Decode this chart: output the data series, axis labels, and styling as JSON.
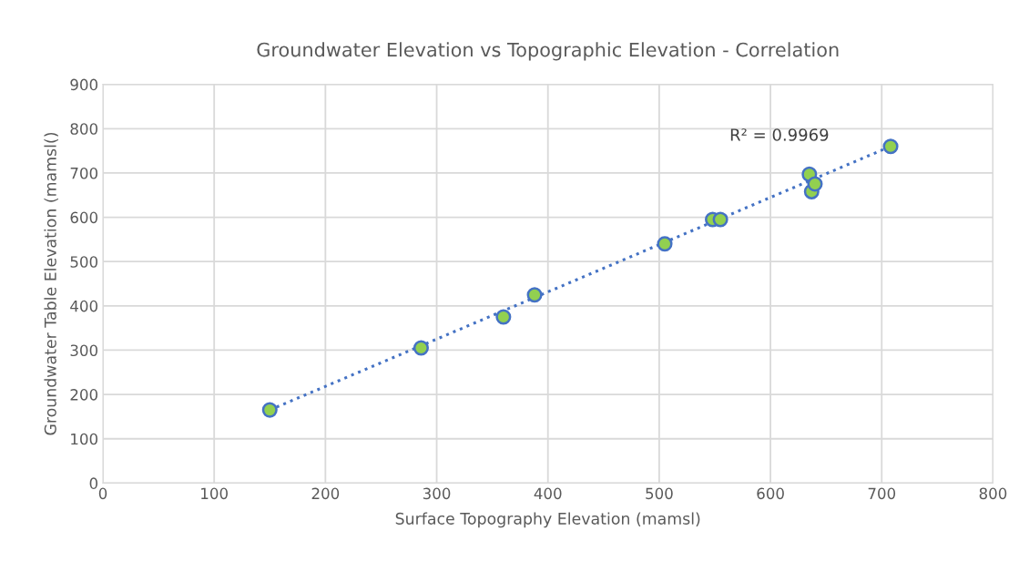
{
  "chart_data": {
    "type": "scatter",
    "title": "Groundwater Elevation vs Topographic Elevation - Correlation",
    "xlabel": "Surface Topography Elevation (mamsl)",
    "ylabel": "Groundwater Table Elevation (mamsl()",
    "xlim": [
      0,
      800
    ],
    "xticks": [
      0,
      100,
      200,
      300,
      400,
      500,
      600,
      700,
      800
    ],
    "ylim": [
      0,
      900
    ],
    "yticks": [
      0,
      100,
      200,
      300,
      400,
      500,
      600,
      700,
      800,
      900
    ],
    "grid": true,
    "annotations": [
      "R² = 0.9969"
    ],
    "series": [
      {
        "color": "#92d050",
        "marker": "circle",
        "x": [
          150,
          286,
          360,
          388,
          505,
          548,
          555,
          635,
          637,
          640,
          708
        ],
        "values": [
          165,
          305,
          375,
          425,
          540,
          595,
          595,
          697,
          658,
          675,
          760
        ]
      },
      {
        "type": "line",
        "color": "#4472c4",
        "line_style": "dotted",
        "marker": "none",
        "x": [
          150,
          708
        ],
        "values": [
          165,
          760
        ]
      }
    ]
  }
}
